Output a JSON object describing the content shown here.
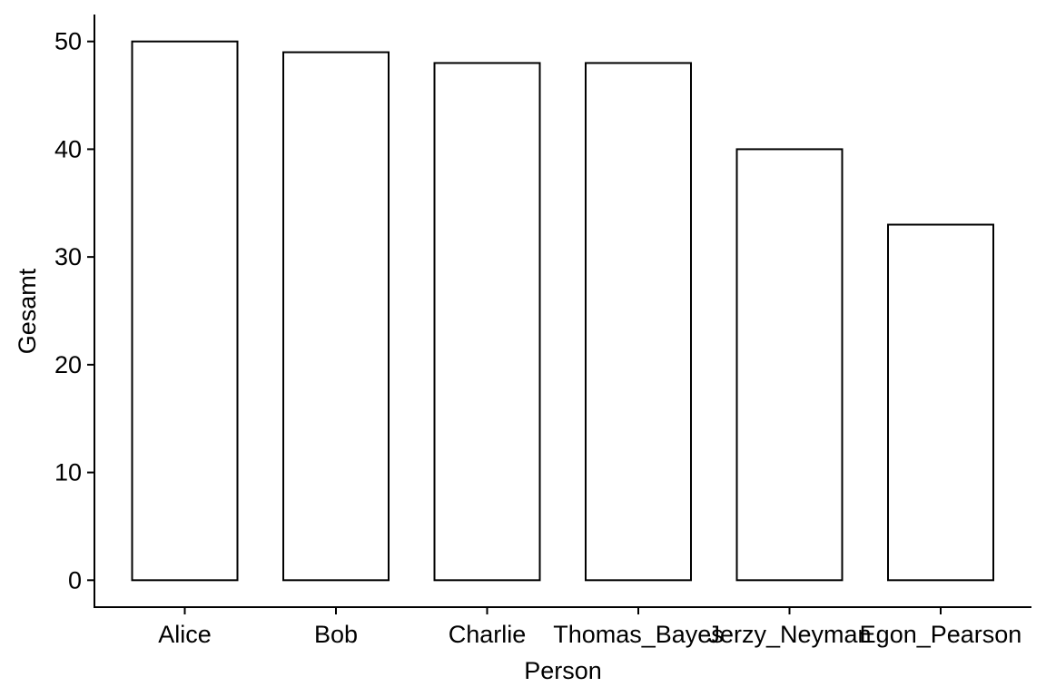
{
  "chart_data": {
    "type": "bar",
    "categories": [
      "Alice",
      "Bob",
      "Charlie",
      "Thomas_Bayes",
      "Jerzy_Neyman",
      "Egon_Pearson"
    ],
    "values": [
      50,
      49,
      48,
      48,
      40,
      33
    ],
    "title": "",
    "xlabel": "Person",
    "ylabel": "Gesamt",
    "ylim": [
      -2.5,
      52.5
    ],
    "yticks": [
      0,
      10,
      20,
      30,
      40,
      50
    ],
    "grid": false,
    "legend": "none",
    "colors": {
      "bar_fill": "#ffffff",
      "bar_stroke": "#000000",
      "axis": "#000000"
    }
  }
}
